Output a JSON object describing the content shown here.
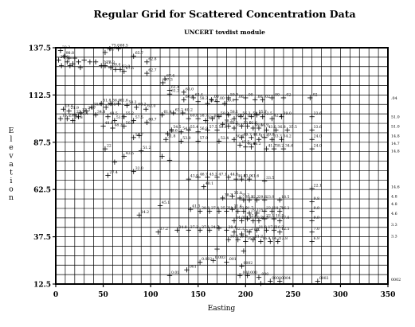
{
  "chart_data": {
    "type": "scatter",
    "title": "Regular Grid for Scattered Concentration Data",
    "subtitle": "UNCERT tovdist module",
    "xlabel": "Easting",
    "ylabel": "Elevation",
    "xlim": [
      0,
      350
    ],
    "ylim": [
      12.5,
      137.5
    ],
    "x_ticks": [
      "0",
      "50",
      "100",
      "150",
      "200",
      "250",
      "300",
      "350"
    ],
    "y_ticks": [
      "12.5",
      "37.5",
      "62.5",
      "87.5",
      "112.5",
      "137.5"
    ],
    "grid": true,
    "grid_x_spacing": 10,
    "grid_y_spacing": 5,
    "right_edge_labels": [
      {
        "y": 111,
        "text": ".04"
      },
      {
        "y": 101,
        "text": "51.0"
      },
      {
        "y": 96,
        "text": "51.0"
      },
      {
        "y": 91,
        "text": "14.8"
      },
      {
        "y": 87,
        "text": "14.7"
      },
      {
        "y": 83,
        "text": "14.8"
      },
      {
        "y": 64,
        "text": "14.6"
      },
      {
        "y": 59,
        "text": "4.8"
      },
      {
        "y": 55,
        "text": "4.8"
      },
      {
        "y": 50,
        "text": "4.6"
      },
      {
        "y": 44,
        "text": "3.3"
      },
      {
        "y": 38,
        "text": "3.3"
      },
      {
        "y": 15,
        "text": "0002"
      }
    ],
    "points": [
      {
        "x": 5,
        "y": 136,
        "label": "32.3"
      },
      {
        "x": 9,
        "y": 133,
        "label": "98.8"
      },
      {
        "x": 14,
        "y": 132,
        "label": ""
      },
      {
        "x": 20,
        "y": 132,
        "label": ""
      },
      {
        "x": 3,
        "y": 131,
        "label": "25.4"
      },
      {
        "x": 12,
        "y": 130,
        "label": ""
      },
      {
        "x": 18,
        "y": 129,
        "label": ""
      },
      {
        "x": 24,
        "y": 130,
        "label": ""
      },
      {
        "x": 30,
        "y": 131,
        "label": ""
      },
      {
        "x": 6,
        "y": 128,
        "label": ""
      },
      {
        "x": 15,
        "y": 128,
        "label": ""
      },
      {
        "x": 26,
        "y": 127,
        "label": ""
      },
      {
        "x": 36,
        "y": 130,
        "label": ""
      },
      {
        "x": 42,
        "y": 130,
        "label": ""
      },
      {
        "x": 48,
        "y": 128,
        "label": "78.7"
      },
      {
        "x": 52,
        "y": 135,
        "label": "78.7"
      },
      {
        "x": 57,
        "y": 137,
        "label": "75.0"
      },
      {
        "x": 66,
        "y": 137,
        "label": "68.5"
      },
      {
        "x": 52,
        "y": 128,
        "label": "76.3"
      },
      {
        "x": 58,
        "y": 127,
        "label": "30.4"
      },
      {
        "x": 63,
        "y": 126,
        "label": ""
      },
      {
        "x": 68,
        "y": 126,
        "label": "63.9"
      },
      {
        "x": 72,
        "y": 125,
        "label": "67.5"
      },
      {
        "x": 82,
        "y": 133,
        "label": "65.7"
      },
      {
        "x": 96,
        "y": 130,
        "label": "62.8"
      },
      {
        "x": 96,
        "y": 124,
        "label": "62.7"
      },
      {
        "x": 115,
        "y": 121,
        "label": "67.4"
      },
      {
        "x": 113,
        "y": 119,
        "label": "67.3"
      },
      {
        "x": 120,
        "y": 115,
        "label": "61.4"
      },
      {
        "x": 120,
        "y": 113,
        "label": "61.2"
      },
      {
        "x": 135,
        "y": 114,
        "label": "63.0"
      },
      {
        "x": 135,
        "y": 110,
        "label": "60.4"
      },
      {
        "x": 145,
        "y": 111,
        "label": "63.4"
      },
      {
        "x": 150,
        "y": 109,
        "label": "58.3"
      },
      {
        "x": 160,
        "y": 108,
        "label": "58.8"
      },
      {
        "x": 164,
        "y": 110,
        "label": ".00"
      },
      {
        "x": 170,
        "y": 109,
        "label": ".00"
      },
      {
        "x": 178,
        "y": 108,
        "label": "59.0"
      },
      {
        "x": 182,
        "y": 111,
        "label": "59.9"
      },
      {
        "x": 190,
        "y": 110,
        "label": ".00"
      },
      {
        "x": 200,
        "y": 111,
        "label": ".00"
      },
      {
        "x": 210,
        "y": 110,
        "label": ".00"
      },
      {
        "x": 218,
        "y": 110,
        "label": ".02"
      },
      {
        "x": 228,
        "y": 111,
        "label": ".00"
      },
      {
        "x": 240,
        "y": 111,
        "label": ".02"
      },
      {
        "x": 268,
        "y": 111,
        "label": ".02"
      },
      {
        "x": 8,
        "y": 105,
        "label": "18.4"
      },
      {
        "x": 14,
        "y": 104,
        "label": "21.9"
      },
      {
        "x": 20,
        "y": 102,
        "label": "22.2"
      },
      {
        "x": 26,
        "y": 103,
        "label": "12.3"
      },
      {
        "x": 32,
        "y": 104,
        "label": "34.7"
      },
      {
        "x": 38,
        "y": 106,
        "label": "38.3"
      },
      {
        "x": 48,
        "y": 108,
        "label": "51.8"
      },
      {
        "x": 53,
        "y": 106,
        "label": "53.5"
      },
      {
        "x": 58,
        "y": 108,
        "label": "56.6"
      },
      {
        "x": 66,
        "y": 108,
        "label": "61.6"
      },
      {
        "x": 75,
        "y": 107,
        "label": "58.2"
      },
      {
        "x": 85,
        "y": 106,
        "label": "60.2"
      },
      {
        "x": 95,
        "y": 105,
        "label": "62.0"
      },
      {
        "x": 5,
        "y": 100,
        "label": "15.7"
      },
      {
        "x": 12,
        "y": 100,
        "label": "23.5"
      },
      {
        "x": 18,
        "y": 99,
        "label": "24.8"
      },
      {
        "x": 24,
        "y": 101,
        "label": "25.4"
      },
      {
        "x": 42,
        "y": 102,
        "label": "34.8"
      },
      {
        "x": 55,
        "y": 101,
        "label": "48.5"
      },
      {
        "x": 62,
        "y": 99,
        "label": "51.5"
      },
      {
        "x": 72,
        "y": 101,
        "label": "55.2"
      },
      {
        "x": 82,
        "y": 99,
        "label": "57.5"
      },
      {
        "x": 96,
        "y": 98,
        "label": "60.7"
      },
      {
        "x": 112,
        "y": 102,
        "label": "61.4"
      },
      {
        "x": 124,
        "y": 103,
        "label": "63.2"
      },
      {
        "x": 134,
        "y": 103,
        "label": "60.2"
      },
      {
        "x": 140,
        "y": 100,
        "label": "60.8"
      },
      {
        "x": 150,
        "y": 100,
        "label": "58.7"
      },
      {
        "x": 158,
        "y": 99,
        "label": "58.6"
      },
      {
        "x": 165,
        "y": 100,
        "label": "58.4"
      },
      {
        "x": 172,
        "y": 101,
        "label": "59.2"
      },
      {
        "x": 182,
        "y": 102,
        "label": "58.1"
      },
      {
        "x": 188,
        "y": 100,
        "label": "59.0"
      },
      {
        "x": 195,
        "y": 101,
        "label": "56.3"
      },
      {
        "x": 200,
        "y": 100,
        "label": "58.5"
      },
      {
        "x": 206,
        "y": 101,
        "label": "58.8"
      },
      {
        "x": 212,
        "y": 102,
        "label": "55.7"
      },
      {
        "x": 218,
        "y": 101,
        "label": "52.5"
      },
      {
        "x": 228,
        "y": 100,
        "label": "42.1"
      },
      {
        "x": 238,
        "y": 101,
        "label": "39.0"
      },
      {
        "x": 270,
        "y": 101,
        "label": "33.6"
      },
      {
        "x": 50,
        "y": 96,
        "label": "48.6"
      },
      {
        "x": 60,
        "y": 95,
        "label": "48.3"
      },
      {
        "x": 72,
        "y": 96,
        "label": "50.3"
      },
      {
        "x": 82,
        "y": 90,
        "label": "54.7"
      },
      {
        "x": 118,
        "y": 92,
        "label": "52.6"
      },
      {
        "x": 122,
        "y": 94,
        "label": "54.5"
      },
      {
        "x": 132,
        "y": 93,
        "label": "54.6"
      },
      {
        "x": 140,
        "y": 94,
        "label": "55.4"
      },
      {
        "x": 150,
        "y": 93,
        "label": "56.9"
      },
      {
        "x": 160,
        "y": 94,
        "label": "57.5"
      },
      {
        "x": 170,
        "y": 94,
        "label": "56.6"
      },
      {
        "x": 176,
        "y": 97,
        "label": "58.3"
      },
      {
        "x": 182,
        "y": 96,
        "label": "58.2"
      },
      {
        "x": 188,
        "y": 95,
        "label": "55.7"
      },
      {
        "x": 196,
        "y": 96,
        "label": "53.0"
      },
      {
        "x": 202,
        "y": 96,
        "label": "52.6"
      },
      {
        "x": 208,
        "y": 95,
        "label": "49.5"
      },
      {
        "x": 214,
        "y": 95,
        "label": "44.9"
      },
      {
        "x": 222,
        "y": 94,
        "label": "43.6"
      },
      {
        "x": 232,
        "y": 94,
        "label": "36.8"
      },
      {
        "x": 244,
        "y": 94,
        "label": "35.5"
      },
      {
        "x": 270,
        "y": 94,
        "label": "33.6"
      },
      {
        "x": 88,
        "y": 91,
        "label": ""
      },
      {
        "x": 116,
        "y": 89,
        "label": "51.8"
      },
      {
        "x": 132,
        "y": 88,
        "label": "53.0"
      },
      {
        "x": 150,
        "y": 88,
        "label": "57.9"
      },
      {
        "x": 172,
        "y": 88,
        "label": "52.4"
      },
      {
        "x": 188,
        "y": 89,
        "label": "50.4"
      },
      {
        "x": 196,
        "y": 90,
        "label": "49.7"
      },
      {
        "x": 206,
        "y": 90,
        "label": "48.6"
      },
      {
        "x": 214,
        "y": 89,
        "label": "47.5"
      },
      {
        "x": 220,
        "y": 90,
        "label": "39.8"
      },
      {
        "x": 228,
        "y": 89,
        "label": "33.3"
      },
      {
        "x": 238,
        "y": 89,
        "label": "34.2"
      },
      {
        "x": 270,
        "y": 89,
        "label": "24.0"
      },
      {
        "x": 194,
        "y": 86,
        "label": "45.5"
      },
      {
        "x": 200,
        "y": 85,
        "label": "46.8"
      },
      {
        "x": 206,
        "y": 85,
        "label": "46.2"
      },
      {
        "x": 222,
        "y": 84,
        "label": "41.7"
      },
      {
        "x": 230,
        "y": 84,
        "label": "38.2"
      },
      {
        "x": 240,
        "y": 84,
        "label": "34.6"
      },
      {
        "x": 270,
        "y": 84,
        "label": "24.0"
      },
      {
        "x": 52,
        "y": 84,
        "label": "22"
      },
      {
        "x": 72,
        "y": 80,
        "label": "43.5"
      },
      {
        "x": 90,
        "y": 83,
        "label": "51.2"
      },
      {
        "x": 62,
        "y": 77,
        "label": ""
      },
      {
        "x": 55,
        "y": 70,
        "label": "27.4"
      },
      {
        "x": 82,
        "y": 72,
        "label": "32.0"
      },
      {
        "x": 112,
        "y": 80,
        "label": ""
      },
      {
        "x": 120,
        "y": 78,
        "label": ""
      },
      {
        "x": 140,
        "y": 68,
        "label": "43.9"
      },
      {
        "x": 150,
        "y": 69,
        "label": "46.7"
      },
      {
        "x": 160,
        "y": 69,
        "label": "45.2"
      },
      {
        "x": 170,
        "y": 69,
        "label": "47.1"
      },
      {
        "x": 182,
        "y": 69,
        "label": "44.6"
      },
      {
        "x": 190,
        "y": 68,
        "label": "44.8"
      },
      {
        "x": 196,
        "y": 68,
        "label": "43.9"
      },
      {
        "x": 204,
        "y": 68,
        "label": "41.6"
      },
      {
        "x": 220,
        "y": 67,
        "label": "33.5"
      },
      {
        "x": 156,
        "y": 64,
        "label": "40.1"
      },
      {
        "x": 270,
        "y": 63,
        "label": "22.1"
      },
      {
        "x": 176,
        "y": 58,
        "label": "38.3"
      },
      {
        "x": 186,
        "y": 59,
        "label": "35.8"
      },
      {
        "x": 194,
        "y": 58,
        "label": "35.2"
      },
      {
        "x": 198,
        "y": 57,
        "label": "33.8"
      },
      {
        "x": 204,
        "y": 57,
        "label": "32.2"
      },
      {
        "x": 212,
        "y": 57,
        "label": "29.8"
      },
      {
        "x": 220,
        "y": 57,
        "label": "23.9"
      },
      {
        "x": 236,
        "y": 57,
        "label": "18.5"
      },
      {
        "x": 270,
        "y": 56,
        "label": "9.8"
      },
      {
        "x": 110,
        "y": 54,
        "label": "45.1"
      },
      {
        "x": 142,
        "y": 52,
        "label": "41.3"
      },
      {
        "x": 152,
        "y": 51,
        "label": "38.0"
      },
      {
        "x": 162,
        "y": 51,
        "label": "37.4"
      },
      {
        "x": 172,
        "y": 51,
        "label": "35.2"
      },
      {
        "x": 180,
        "y": 51,
        "label": "31.1"
      },
      {
        "x": 186,
        "y": 52,
        "label": "31.4"
      },
      {
        "x": 192,
        "y": 51,
        "label": "32.0"
      },
      {
        "x": 198,
        "y": 51,
        "label": "31.7"
      },
      {
        "x": 204,
        "y": 50,
        "label": "29.1"
      },
      {
        "x": 212,
        "y": 50,
        "label": "25.2"
      },
      {
        "x": 220,
        "y": 51,
        "label": "23.1"
      },
      {
        "x": 228,
        "y": 51,
        "label": "18.7"
      },
      {
        "x": 236,
        "y": 51,
        "label": "16.2"
      },
      {
        "x": 270,
        "y": 51,
        "label": "9.9"
      },
      {
        "x": 88,
        "y": 49,
        "label": "14.2"
      },
      {
        "x": 188,
        "y": 46,
        "label": "34.0"
      },
      {
        "x": 196,
        "y": 46,
        "label": "34.3"
      },
      {
        "x": 202,
        "y": 47,
        "label": "32.6"
      },
      {
        "x": 208,
        "y": 46,
        "label": "30.3"
      },
      {
        "x": 214,
        "y": 46,
        "label": "26.5"
      },
      {
        "x": 220,
        "y": 47,
        "label": "22.1"
      },
      {
        "x": 230,
        "y": 47,
        "label": "18.5"
      },
      {
        "x": 236,
        "y": 46,
        "label": "17.6"
      },
      {
        "x": 270,
        "y": 46,
        "label": "9.9"
      },
      {
        "x": 108,
        "y": 40,
        "label": "37.2"
      },
      {
        "x": 128,
        "y": 41,
        "label": "34.8"
      },
      {
        "x": 140,
        "y": 41,
        "label": "37.2"
      },
      {
        "x": 152,
        "y": 41,
        "label": "37.1"
      },
      {
        "x": 162,
        "y": 41,
        "label": "34.7"
      },
      {
        "x": 172,
        "y": 42,
        "label": ""
      },
      {
        "x": 180,
        "y": 41,
        "label": "28.4"
      },
      {
        "x": 188,
        "y": 40,
        "label": "32.3"
      },
      {
        "x": 196,
        "y": 39,
        "label": "33.2"
      },
      {
        "x": 204,
        "y": 40,
        "label": "27.4"
      },
      {
        "x": 212,
        "y": 41,
        "label": "21.8"
      },
      {
        "x": 222,
        "y": 41,
        "label": "17.6"
      },
      {
        "x": 230,
        "y": 41,
        "label": "16.2"
      },
      {
        "x": 236,
        "y": 40,
        "label": "12.5"
      },
      {
        "x": 270,
        "y": 40,
        "label": "7.0"
      },
      {
        "x": 182,
        "y": 36,
        "label": "30.7"
      },
      {
        "x": 192,
        "y": 36,
        "label": "29.8"
      },
      {
        "x": 200,
        "y": 35,
        "label": "26.4"
      },
      {
        "x": 208,
        "y": 36,
        "label": "21.2"
      },
      {
        "x": 216,
        "y": 35,
        "label": "16.4"
      },
      {
        "x": 226,
        "y": 35,
        "label": "14.2"
      },
      {
        "x": 234,
        "y": 35,
        "label": "12.8"
      },
      {
        "x": 270,
        "y": 35,
        "label": "6.9"
      },
      {
        "x": 170,
        "y": 31,
        "label": ""
      },
      {
        "x": 198,
        "y": 30,
        "label": ""
      },
      {
        "x": 152,
        "y": 24,
        "label": "0.002"
      },
      {
        "x": 166,
        "y": 25,
        "label": "0.003"
      },
      {
        "x": 180,
        "y": 24,
        "label": ".001"
      },
      {
        "x": 196,
        "y": 22,
        "label": "0002"
      },
      {
        "x": 138,
        "y": 20,
        "label": ".001"
      },
      {
        "x": 120,
        "y": 17,
        "label": "0.01"
      },
      {
        "x": 194,
        "y": 17,
        "label": ".000"
      },
      {
        "x": 202,
        "y": 17,
        "label": ".000"
      },
      {
        "x": 214,
        "y": 16,
        "label": ".000"
      },
      {
        "x": 226,
        "y": 14,
        "label": "0000"
      },
      {
        "x": 236,
        "y": 14,
        "label": "0004"
      },
      {
        "x": 276,
        "y": 14,
        "label": "0002"
      },
      {
        "x": 216,
        "y": 12.8,
        "label": ""
      }
    ]
  }
}
